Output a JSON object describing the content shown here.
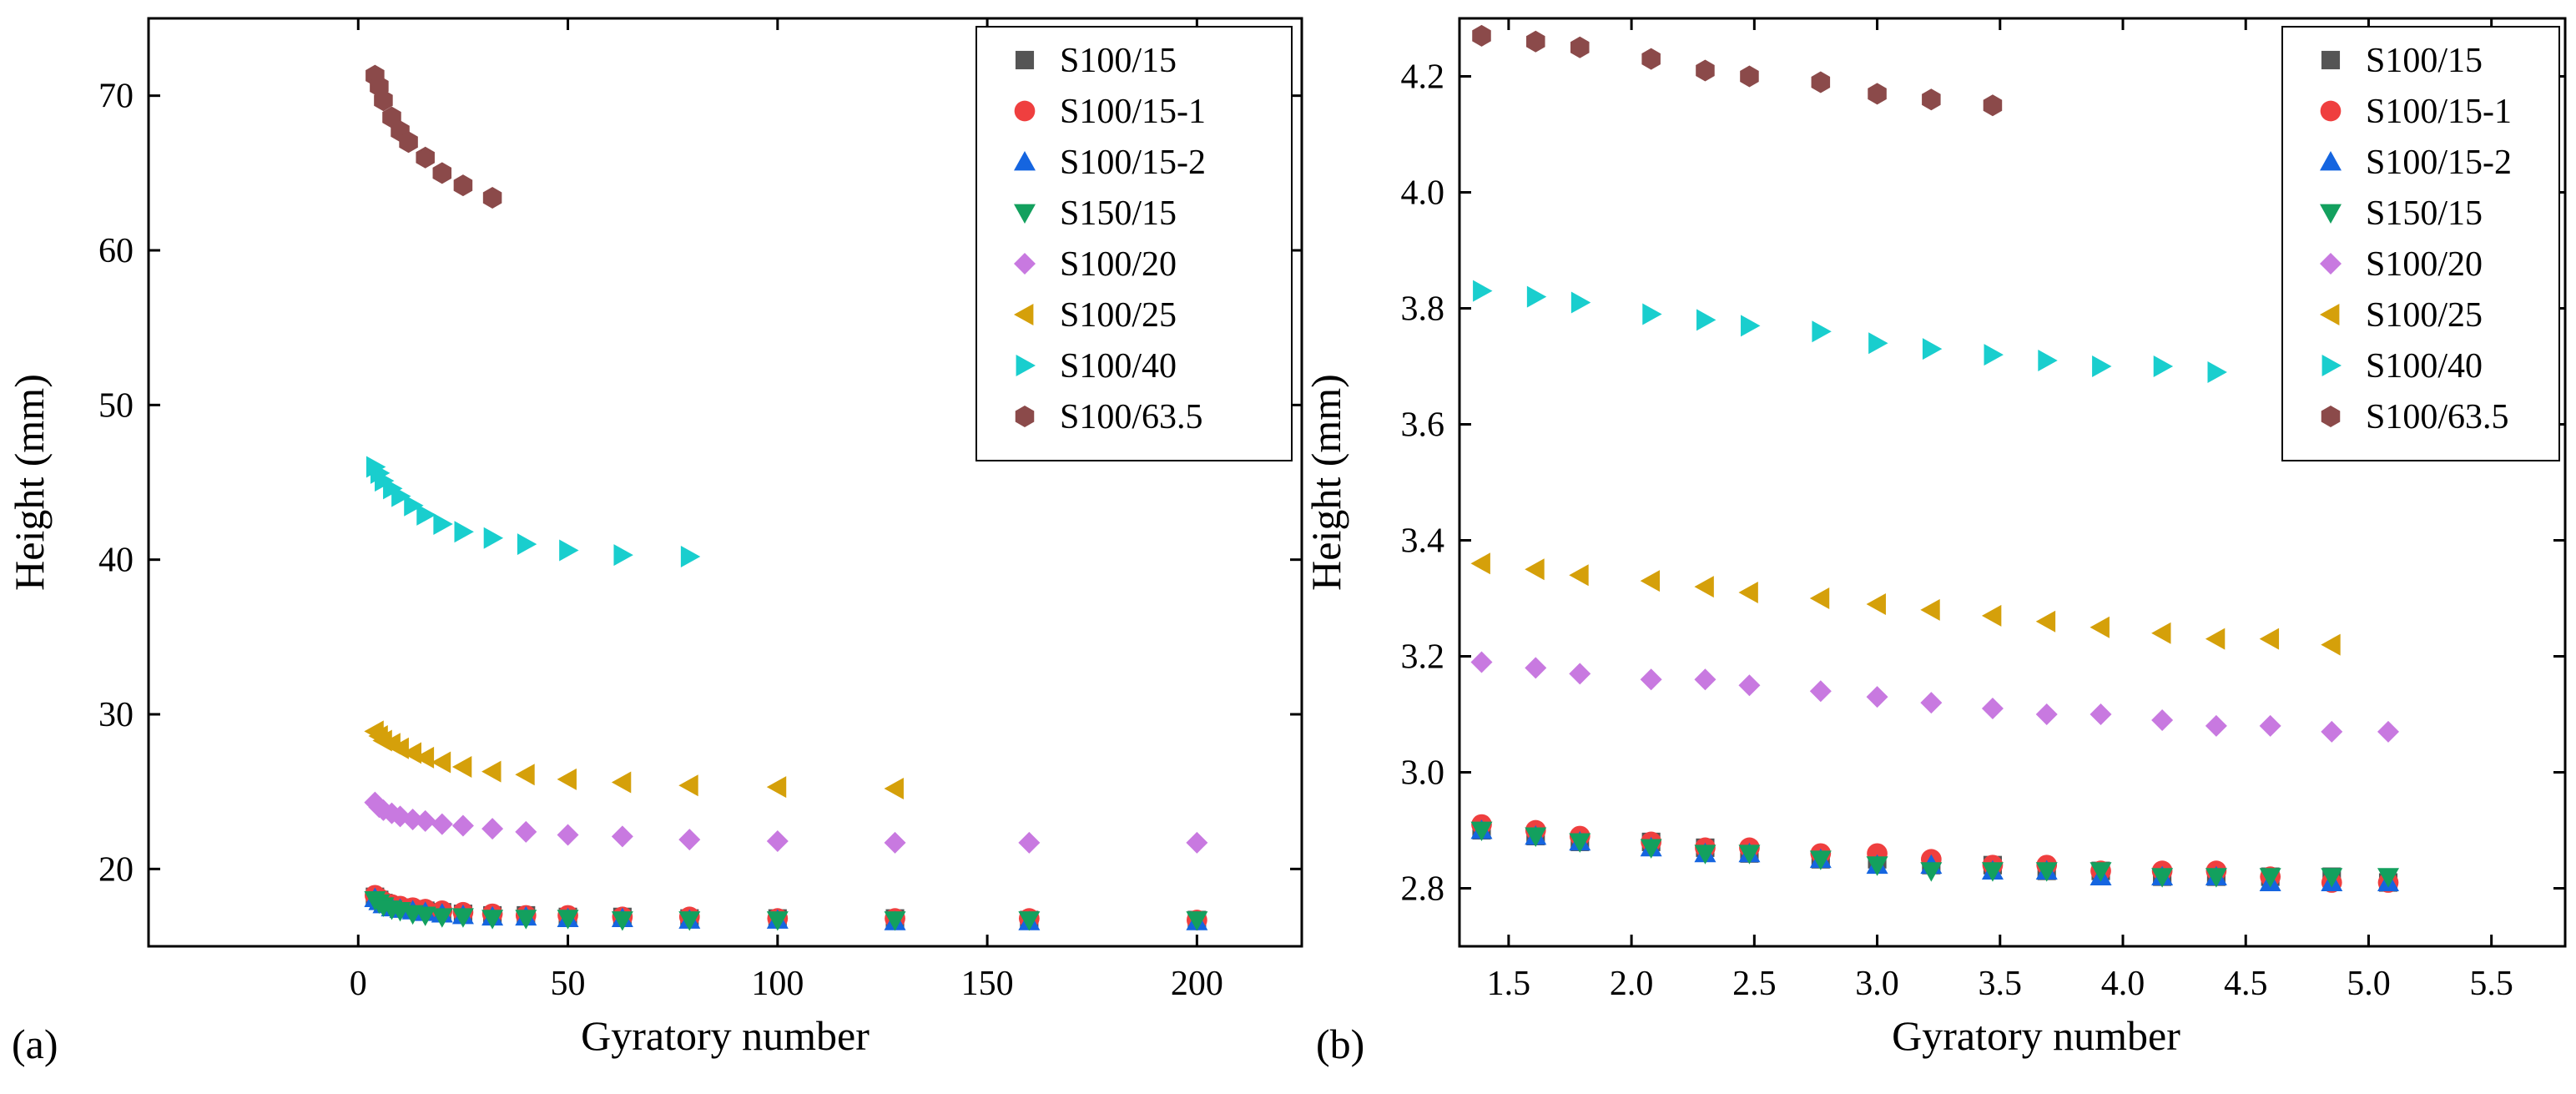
{
  "figure": {
    "colors": {
      "S100/15": "#555555",
      "S100/15-1": "#ef3f3f",
      "S100/15-2": "#1565e0",
      "S150/15": "#13a05e",
      "S100/20": "#c879e0",
      "S100/25": "#d5a00a",
      "S100/40": "#19cece",
      "S100/63.5": "#8b4a4a"
    }
  },
  "chart_data": [
    {
      "type": "scatter",
      "panel_label": "(a)",
      "xlabel": "Gyratory number",
      "ylabel": "Height (mm)",
      "xlim": [
        -50,
        225
      ],
      "ylim": [
        15,
        75
      ],
      "xticks": [
        0,
        50,
        100,
        150,
        200
      ],
      "yticks": [
        20,
        30,
        40,
        50,
        60,
        70
      ],
      "legend": "top-right",
      "series": [
        {
          "name": "S100/15",
          "marker": "square",
          "x": [
            4,
            5,
            6,
            8,
            10,
            13,
            16,
            20,
            25,
            32,
            40,
            50,
            63,
            79,
            100,
            128,
            160,
            200
          ],
          "y": [
            18.2,
            18.0,
            17.8,
            17.6,
            17.5,
            17.4,
            17.3,
            17.2,
            17.1,
            17.0,
            17.0,
            16.9,
            16.9,
            16.8,
            16.8,
            16.8,
            16.7,
            16.7
          ]
        },
        {
          "name": "S100/15-1",
          "marker": "circle",
          "x": [
            4,
            5,
            6,
            8,
            10,
            13,
            16,
            20,
            25,
            32,
            40,
            50,
            63,
            79,
            100,
            128,
            160,
            200
          ],
          "y": [
            18.3,
            18.1,
            17.9,
            17.7,
            17.6,
            17.5,
            17.4,
            17.3,
            17.2,
            17.1,
            17.0,
            17.0,
            16.9,
            16.9,
            16.8,
            16.8,
            16.8,
            16.7
          ]
        },
        {
          "name": "S100/15-2",
          "marker": "triangle-up",
          "x": [
            4,
            5,
            6,
            8,
            10,
            13,
            16,
            20,
            25,
            32,
            40,
            50,
            63,
            79,
            100,
            128,
            160,
            200
          ],
          "y": [
            18.1,
            17.9,
            17.7,
            17.5,
            17.4,
            17.3,
            17.2,
            17.1,
            17.0,
            16.9,
            16.9,
            16.8,
            16.8,
            16.7,
            16.7,
            16.6,
            16.6,
            16.6
          ]
        },
        {
          "name": "S150/15",
          "marker": "triangle-down",
          "x": [
            4,
            5,
            6,
            8,
            10,
            13,
            16,
            20,
            25,
            32,
            40,
            50,
            63,
            79,
            100,
            128,
            160,
            200
          ],
          "y": [
            18.0,
            17.8,
            17.6,
            17.4,
            17.3,
            17.1,
            17.0,
            16.9,
            16.9,
            16.8,
            16.8,
            16.8,
            16.7,
            16.7,
            16.7,
            16.7,
            16.7,
            16.7
          ]
        },
        {
          "name": "S100/20",
          "marker": "diamond",
          "x": [
            4,
            5,
            6,
            8,
            10,
            13,
            16,
            20,
            25,
            32,
            40,
            50,
            63,
            79,
            100,
            128,
            160,
            200
          ],
          "y": [
            24.3,
            24.0,
            23.8,
            23.6,
            23.4,
            23.2,
            23.1,
            22.9,
            22.8,
            22.6,
            22.4,
            22.2,
            22.1,
            21.9,
            21.8,
            21.7,
            21.7,
            21.7
          ]
        },
        {
          "name": "S100/25",
          "marker": "triangle-left",
          "x": [
            4,
            5,
            6,
            8,
            10,
            13,
            16,
            20,
            25,
            32,
            40,
            50,
            63,
            79,
            100,
            128
          ],
          "y": [
            28.9,
            28.6,
            28.3,
            28.1,
            27.8,
            27.5,
            27.2,
            26.9,
            26.6,
            26.3,
            26.1,
            25.8,
            25.6,
            25.4,
            25.3,
            25.2
          ]
        },
        {
          "name": "S100/40",
          "marker": "triangle-right",
          "x": [
            4,
            5,
            6,
            8,
            10,
            13,
            16,
            20,
            25,
            32,
            40,
            50,
            63,
            79
          ],
          "y": [
            46.0,
            45.6,
            45.1,
            44.6,
            44.1,
            43.5,
            42.9,
            42.3,
            41.8,
            41.4,
            41.0,
            40.6,
            40.3,
            40.2
          ]
        },
        {
          "name": "S100/63.5",
          "marker": "hexagon",
          "x": [
            4,
            5,
            6,
            8,
            10,
            12,
            16,
            20,
            25,
            32
          ],
          "y": [
            71.3,
            70.6,
            69.7,
            68.6,
            67.7,
            67.0,
            66.0,
            65.0,
            64.2,
            63.4
          ]
        }
      ]
    },
    {
      "type": "scatter",
      "panel_label": "(b)",
      "xlabel": "Gyratory number",
      "ylabel": "Height (mm)",
      "xlim": [
        1.3,
        5.8
      ],
      "ylim": [
        2.7,
        4.3
      ],
      "xticks": [
        1.5,
        2.0,
        2.5,
        3.0,
        3.5,
        4.0,
        4.5,
        5.0,
        5.5
      ],
      "xticklabels": [
        "1.5",
        "2.0",
        "2.5",
        "3.0",
        "3.5",
        "4.0",
        "4.5",
        "5.0",
        "5.5"
      ],
      "yticks": [
        2.8,
        3.0,
        3.2,
        3.4,
        3.6,
        3.8,
        4.0,
        4.2
      ],
      "yticklabels": [
        "2.8",
        "3.0",
        "3.2",
        "3.4",
        "3.6",
        "3.8",
        "4.0",
        "4.2"
      ],
      "legend": "top-right",
      "series": [
        {
          "name": "S100/15",
          "marker": "square",
          "x": [
            1.39,
            1.61,
            1.79,
            2.08,
            2.3,
            2.48,
            2.77,
            3.0,
            3.22,
            3.47,
            3.69,
            3.91,
            4.16,
            4.38,
            4.6,
            4.85,
            5.08
          ],
          "y": [
            2.9,
            2.89,
            2.88,
            2.88,
            2.87,
            2.86,
            2.85,
            2.85,
            2.84,
            2.84,
            2.83,
            2.83,
            2.82,
            2.82,
            2.82,
            2.82,
            2.81
          ]
        },
        {
          "name": "S100/15-1",
          "marker": "circle",
          "x": [
            1.39,
            1.61,
            1.79,
            2.08,
            2.3,
            2.48,
            2.77,
            3.0,
            3.22,
            3.47,
            3.69,
            3.91,
            4.16,
            4.38,
            4.6,
            4.85,
            5.08
          ],
          "y": [
            2.91,
            2.9,
            2.89,
            2.88,
            2.87,
            2.87,
            2.86,
            2.86,
            2.85,
            2.84,
            2.84,
            2.83,
            2.83,
            2.83,
            2.82,
            2.81,
            2.81
          ]
        },
        {
          "name": "S100/15-2",
          "marker": "triangle-up",
          "x": [
            1.39,
            1.61,
            1.79,
            2.08,
            2.3,
            2.48,
            2.77,
            3.0,
            3.22,
            3.47,
            3.69,
            3.91,
            4.16,
            4.38,
            4.6,
            4.85,
            5.08
          ],
          "y": [
            2.9,
            2.89,
            2.88,
            2.87,
            2.86,
            2.86,
            2.85,
            2.84,
            2.84,
            2.83,
            2.83,
            2.82,
            2.82,
            2.82,
            2.81,
            2.81,
            2.81
          ]
        },
        {
          "name": "S150/15",
          "marker": "triangle-down",
          "x": [
            1.39,
            1.61,
            1.79,
            2.08,
            2.3,
            2.48,
            2.77,
            3.0,
            3.22,
            3.47,
            3.69,
            3.91,
            4.16,
            4.38,
            4.6,
            4.85,
            5.08
          ],
          "y": [
            2.9,
            2.89,
            2.88,
            2.87,
            2.86,
            2.86,
            2.85,
            2.84,
            2.83,
            2.83,
            2.83,
            2.83,
            2.82,
            2.82,
            2.82,
            2.82,
            2.82
          ]
        },
        {
          "name": "S100/20",
          "marker": "diamond",
          "x": [
            1.39,
            1.61,
            1.79,
            2.08,
            2.3,
            2.48,
            2.77,
            3.0,
            3.22,
            3.47,
            3.69,
            3.91,
            4.16,
            4.38,
            4.6,
            4.85,
            5.08
          ],
          "y": [
            3.19,
            3.18,
            3.17,
            3.16,
            3.16,
            3.15,
            3.14,
            3.13,
            3.12,
            3.11,
            3.1,
            3.1,
            3.09,
            3.08,
            3.08,
            3.07,
            3.07
          ]
        },
        {
          "name": "S100/25",
          "marker": "triangle-left",
          "x": [
            1.39,
            1.61,
            1.79,
            2.08,
            2.3,
            2.48,
            2.77,
            3.0,
            3.22,
            3.47,
            3.69,
            3.91,
            4.16,
            4.38,
            4.6,
            4.85
          ],
          "y": [
            3.36,
            3.35,
            3.34,
            3.33,
            3.32,
            3.31,
            3.3,
            3.29,
            3.28,
            3.27,
            3.26,
            3.25,
            3.24,
            3.23,
            3.23,
            3.22
          ]
        },
        {
          "name": "S100/40",
          "marker": "triangle-right",
          "x": [
            1.39,
            1.61,
            1.79,
            2.08,
            2.3,
            2.48,
            2.77,
            3.0,
            3.22,
            3.47,
            3.69,
            3.91,
            4.16,
            4.38
          ],
          "y": [
            3.83,
            3.82,
            3.81,
            3.79,
            3.78,
            3.77,
            3.76,
            3.74,
            3.73,
            3.72,
            3.71,
            3.7,
            3.7,
            3.69
          ]
        },
        {
          "name": "S100/63.5",
          "marker": "hexagon",
          "x": [
            1.39,
            1.61,
            1.79,
            2.08,
            2.3,
            2.48,
            2.77,
            3.0,
            3.22,
            3.47
          ],
          "y": [
            4.27,
            4.26,
            4.25,
            4.23,
            4.21,
            4.2,
            4.19,
            4.17,
            4.16,
            4.15
          ]
        }
      ]
    }
  ]
}
